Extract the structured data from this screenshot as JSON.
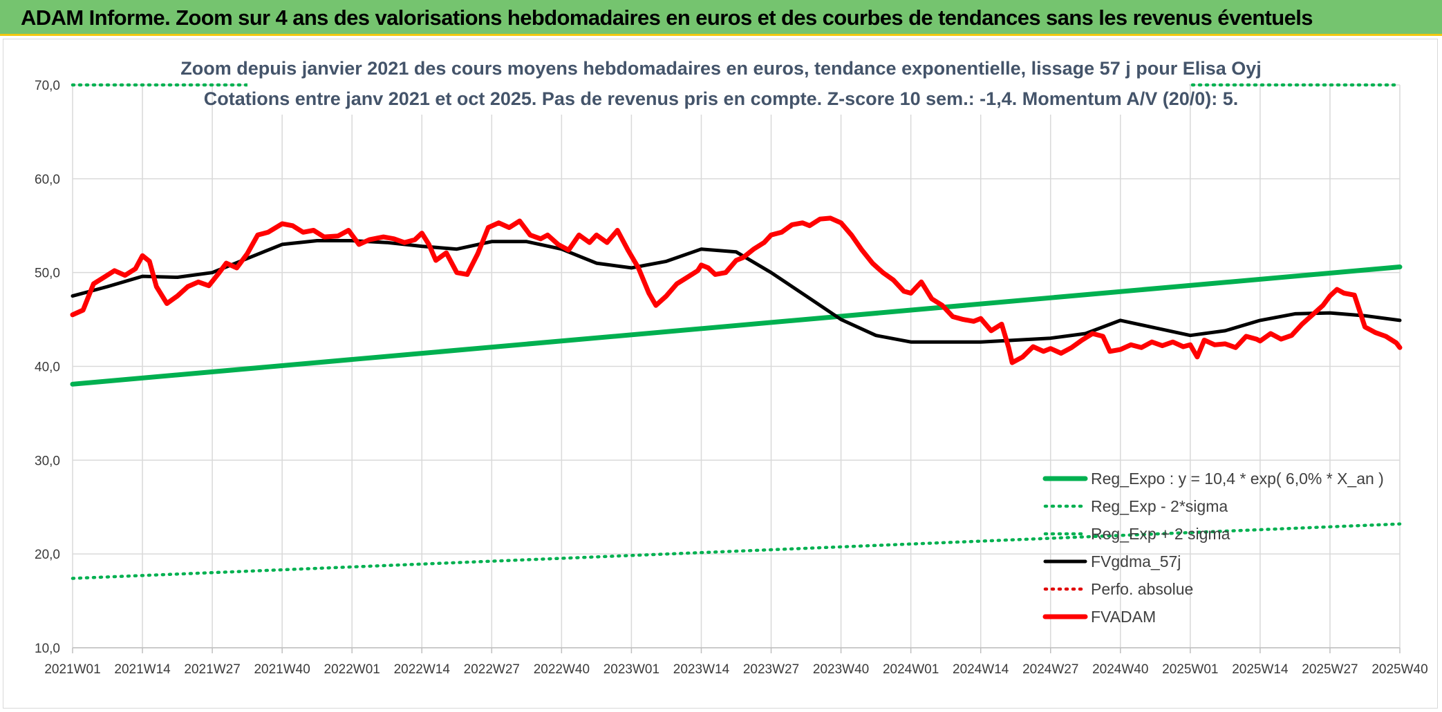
{
  "header": {
    "title": "ADAM Informe. Zoom sur 4 ans des valorisations hebdomadaires en euros et des courbes de tendances sans les revenus éventuels"
  },
  "colors": {
    "header_bg": "#75c46f",
    "header_border": "#f3c70f",
    "reg_expo": "#00b050",
    "fv_adam": "#ff0000",
    "fv_gdma": "#000000",
    "perfo": "#e00000",
    "title_text": "#44546a"
  },
  "chart_data": {
    "type": "line",
    "title": "Zoom depuis janvier 2021 des cours moyens hebdomadaires en euros, tendance exponentielle, lissage 57 j pour Elisa Oyj",
    "subtitle": "Cotations entre janv 2021 et oct 2025. Pas de revenus pris en compte. Z-score 10 sem.: -1,4. Momentum A/V (20/0): 5.",
    "xlabel": "",
    "ylabel": "",
    "ylim": [
      10,
      70
    ],
    "y_ticks": [
      "10,0",
      "20,0",
      "30,0",
      "40,0",
      "50,0",
      "60,0",
      "70,0"
    ],
    "x_ticks": [
      "2021W01",
      "2021W14",
      "2021W27",
      "2021W40",
      "2022W01",
      "2022W14",
      "2022W27",
      "2022W40",
      "2023W01",
      "2023W14",
      "2023W27",
      "2023W40",
      "2024W01",
      "2024W14",
      "2024W27",
      "2024W40",
      "2025W01",
      "2025W14",
      "2025W27",
      "2025W40"
    ],
    "grid": "vertical and horizontal",
    "legend_position": "bottom-right",
    "series": [
      {
        "name": "Reg_Expo : y = 10,4 * exp( 6,0% *  X_an )",
        "style": "solid-thick",
        "color": "#00b050",
        "points": [
          [
            0,
            38.1
          ],
          [
            19,
            50.6
          ]
        ]
      },
      {
        "name": "Reg_Exp - 2*sigma",
        "style": "dotted",
        "color": "#00b050",
        "points": [
          [
            0,
            17.4
          ],
          [
            19,
            23.2
          ]
        ]
      },
      {
        "name": "Reg_Exp + 2 sigma",
        "style": "dotted",
        "color": "#00b050",
        "points": [
          [
            0,
            70.0
          ],
          [
            19,
            70.0
          ]
        ]
      },
      {
        "name": "FVgdma_57j",
        "style": "solid",
        "color": "#000000",
        "points": [
          [
            0,
            47.5
          ],
          [
            0.5,
            48.5
          ],
          [
            1,
            49.6
          ],
          [
            1.5,
            49.5
          ],
          [
            2,
            50.0
          ],
          [
            2.5,
            51.5
          ],
          [
            3,
            53.0
          ],
          [
            3.5,
            53.4
          ],
          [
            4,
            53.4
          ],
          [
            4.5,
            53.2
          ],
          [
            5,
            52.8
          ],
          [
            5.5,
            52.5
          ],
          [
            6,
            53.3
          ],
          [
            6.5,
            53.3
          ],
          [
            7,
            52.5
          ],
          [
            7.5,
            51.0
          ],
          [
            8,
            50.5
          ],
          [
            8.5,
            51.2
          ],
          [
            9,
            52.5
          ],
          [
            9.5,
            52.2
          ],
          [
            10,
            50.0
          ],
          [
            10.5,
            47.5
          ],
          [
            11,
            45.0
          ],
          [
            11.5,
            43.3
          ],
          [
            12,
            42.6
          ],
          [
            13,
            42.6
          ],
          [
            13.5,
            42.8
          ],
          [
            14,
            43.0
          ],
          [
            14.5,
            43.5
          ],
          [
            15,
            44.9
          ],
          [
            15.5,
            44.1
          ],
          [
            16,
            43.3
          ],
          [
            16.5,
            43.8
          ],
          [
            17,
            44.9
          ],
          [
            17.5,
            45.6
          ],
          [
            18,
            45.7
          ],
          [
            18.5,
            45.4
          ],
          [
            19,
            44.9
          ]
        ]
      },
      {
        "name": "Perfo. absolue",
        "style": "dotted",
        "color": "#e00000",
        "points": []
      },
      {
        "name": "FVADAM",
        "style": "solid-thick",
        "color": "#ff0000",
        "points": [
          [
            0,
            45.5
          ],
          [
            0.15,
            46.0
          ],
          [
            0.3,
            48.8
          ],
          [
            0.45,
            49.5
          ],
          [
            0.6,
            50.2
          ],
          [
            0.75,
            49.7
          ],
          [
            0.9,
            50.4
          ],
          [
            1,
            51.8
          ],
          [
            1.1,
            51.2
          ],
          [
            1.2,
            48.5
          ],
          [
            1.35,
            46.7
          ],
          [
            1.5,
            47.5
          ],
          [
            1.65,
            48.5
          ],
          [
            1.8,
            49.0
          ],
          [
            1.95,
            48.6
          ],
          [
            2.1,
            50.0
          ],
          [
            2.2,
            51.0
          ],
          [
            2.35,
            50.5
          ],
          [
            2.5,
            52.0
          ],
          [
            2.65,
            54.0
          ],
          [
            2.8,
            54.3
          ],
          [
            3,
            55.2
          ],
          [
            3.15,
            55.0
          ],
          [
            3.3,
            54.3
          ],
          [
            3.45,
            54.5
          ],
          [
            3.6,
            53.8
          ],
          [
            3.8,
            53.9
          ],
          [
            3.95,
            54.5
          ],
          [
            4.1,
            53.0
          ],
          [
            4.25,
            53.5
          ],
          [
            4.45,
            53.8
          ],
          [
            4.6,
            53.6
          ],
          [
            4.75,
            53.2
          ],
          [
            4.9,
            53.5
          ],
          [
            5,
            54.2
          ],
          [
            5.1,
            53.0
          ],
          [
            5.2,
            51.3
          ],
          [
            5.35,
            52.1
          ],
          [
            5.5,
            50.0
          ],
          [
            5.65,
            49.8
          ],
          [
            5.8,
            52.0
          ],
          [
            5.95,
            54.8
          ],
          [
            6.1,
            55.3
          ],
          [
            6.25,
            54.8
          ],
          [
            6.4,
            55.5
          ],
          [
            6.55,
            54.0
          ],
          [
            6.7,
            53.6
          ],
          [
            6.8,
            54.0
          ],
          [
            6.95,
            53.0
          ],
          [
            7.1,
            52.4
          ],
          [
            7.25,
            54.0
          ],
          [
            7.4,
            53.2
          ],
          [
            7.5,
            54.0
          ],
          [
            7.65,
            53.2
          ],
          [
            7.8,
            54.5
          ],
          [
            7.95,
            52.4
          ],
          [
            8.1,
            50.5
          ],
          [
            8.25,
            47.8
          ],
          [
            8.35,
            46.5
          ],
          [
            8.5,
            47.5
          ],
          [
            8.65,
            48.8
          ],
          [
            8.8,
            49.5
          ],
          [
            8.95,
            50.2
          ],
          [
            9,
            50.8
          ],
          [
            9.1,
            50.5
          ],
          [
            9.2,
            49.8
          ],
          [
            9.35,
            50.0
          ],
          [
            9.5,
            51.3
          ],
          [
            9.6,
            51.6
          ],
          [
            9.75,
            52.5
          ],
          [
            9.9,
            53.2
          ],
          [
            10,
            54.0
          ],
          [
            10.15,
            54.3
          ],
          [
            10.3,
            55.1
          ],
          [
            10.45,
            55.3
          ],
          [
            10.55,
            55.0
          ],
          [
            10.7,
            55.7
          ],
          [
            10.85,
            55.8
          ],
          [
            11,
            55.3
          ],
          [
            11.15,
            54.0
          ],
          [
            11.3,
            52.4
          ],
          [
            11.45,
            51.0
          ],
          [
            11.6,
            50.0
          ],
          [
            11.75,
            49.2
          ],
          [
            11.9,
            48.0
          ],
          [
            12,
            47.8
          ],
          [
            12.15,
            49.0
          ],
          [
            12.3,
            47.2
          ],
          [
            12.45,
            46.5
          ],
          [
            12.6,
            45.3
          ],
          [
            12.75,
            45.0
          ],
          [
            12.9,
            44.8
          ],
          [
            13,
            45.1
          ],
          [
            13.15,
            43.8
          ],
          [
            13.3,
            44.5
          ],
          [
            13.4,
            42.0
          ],
          [
            13.45,
            40.4
          ],
          [
            13.6,
            41.0
          ],
          [
            13.75,
            42.1
          ],
          [
            13.9,
            41.6
          ],
          [
            14,
            41.9
          ],
          [
            14.15,
            41.4
          ],
          [
            14.3,
            42.0
          ],
          [
            14.45,
            42.8
          ],
          [
            14.6,
            43.5
          ],
          [
            14.75,
            43.2
          ],
          [
            14.85,
            41.6
          ],
          [
            15,
            41.8
          ],
          [
            15.15,
            42.3
          ],
          [
            15.3,
            42.0
          ],
          [
            15.45,
            42.6
          ],
          [
            15.6,
            42.2
          ],
          [
            15.75,
            42.6
          ],
          [
            15.9,
            42.1
          ],
          [
            16,
            42.3
          ],
          [
            16.1,
            41.0
          ],
          [
            16.2,
            42.8
          ],
          [
            16.35,
            42.3
          ],
          [
            16.5,
            42.4
          ],
          [
            16.65,
            42.0
          ],
          [
            16.8,
            43.2
          ],
          [
            16.95,
            42.9
          ],
          [
            17,
            42.7
          ],
          [
            17.15,
            43.5
          ],
          [
            17.3,
            42.9
          ],
          [
            17.45,
            43.3
          ],
          [
            17.6,
            44.5
          ],
          [
            17.75,
            45.5
          ],
          [
            17.9,
            46.5
          ],
          [
            18,
            47.5
          ],
          [
            18.1,
            48.2
          ],
          [
            18.2,
            47.8
          ],
          [
            18.35,
            47.6
          ],
          [
            18.5,
            44.2
          ],
          [
            18.65,
            43.6
          ],
          [
            18.8,
            43.2
          ],
          [
            18.95,
            42.5
          ],
          [
            19,
            42.0
          ]
        ]
      }
    ]
  }
}
